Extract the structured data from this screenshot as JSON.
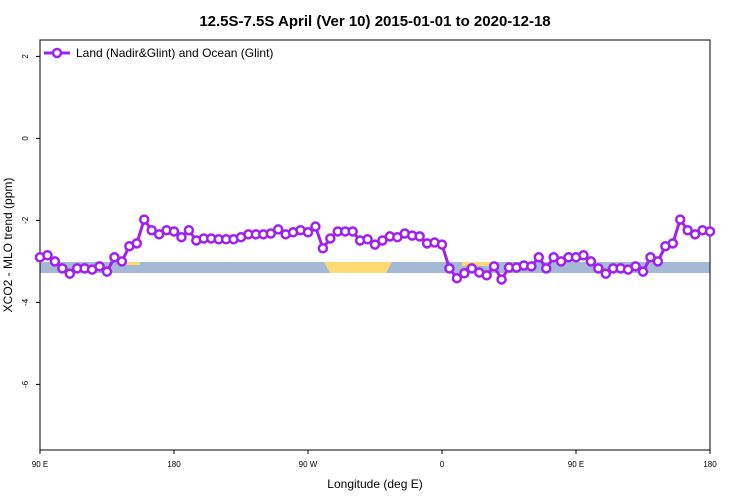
{
  "chart_data": {
    "type": "line",
    "title": "12.5S-7.5S April (Ver 10)   2015-01-01 to 2020-12-18",
    "xlabel": "Longitude (deg E)",
    "ylabel": "XCO2 - MLO trend (ppm)",
    "xlim": [
      90,
      540
    ],
    "ylim": [
      -7.6,
      2.4
    ],
    "xticks": [
      {
        "value": 90,
        "label": "90 E"
      },
      180,
      {
        "value": 270,
        "label": "90 W"
      },
      {
        "value": 360,
        "label": "0"
      },
      {
        "value": 450,
        "label": "90 E"
      },
      {
        "value": 540,
        "label": "180"
      }
    ],
    "yticks": [
      2,
      0,
      -2,
      -4,
      -6
    ],
    "grid": false,
    "legend": "upper left",
    "x": [
      90,
      95,
      100,
      105,
      110,
      115,
      120,
      125,
      130,
      135,
      140,
      145,
      150,
      155,
      160,
      165,
      170,
      175,
      180,
      185,
      190,
      195,
      200,
      205,
      210,
      215,
      220,
      225,
      230,
      235,
      240,
      245,
      250,
      255,
      260,
      265,
      270,
      275,
      280,
      285,
      290,
      295,
      300,
      305,
      310,
      315,
      320,
      325,
      330,
      335,
      340,
      345,
      350,
      355,
      360,
      365,
      370,
      375,
      380,
      385,
      390,
      395,
      400,
      405,
      410,
      415,
      420,
      425,
      430,
      435,
      440,
      445,
      450,
      455,
      460,
      465,
      470,
      475,
      480,
      485,
      490,
      495,
      500,
      505,
      510,
      515,
      520,
      525,
      530,
      535,
      540
    ],
    "series": [
      {
        "name": "Land (Nadir&Glint) and Ocean (Glint)",
        "color": "#a020f0",
        "values": [
          -2.9,
          -2.85,
          -3.0,
          -3.17,
          -3.3,
          -3.17,
          -3.17,
          -3.2,
          -3.12,
          -3.25,
          -2.9,
          -3.0,
          -2.63,
          -2.56,
          -1.98,
          -2.24,
          -2.34,
          -2.24,
          -2.27,
          -2.41,
          -2.24,
          -2.49,
          -2.44,
          -2.44,
          -2.46,
          -2.46,
          -2.46,
          -2.41,
          -2.34,
          -2.34,
          -2.34,
          -2.32,
          -2.22,
          -2.34,
          -2.29,
          -2.24,
          -2.29,
          -2.15,
          -2.68,
          -2.44,
          -2.27,
          -2.27,
          -2.27,
          -2.49,
          -2.46,
          -2.59,
          -2.49,
          -2.39,
          -2.41,
          -2.32,
          -2.37,
          -2.39,
          -2.56,
          -2.54,
          -2.59,
          -3.17,
          -3.41,
          -3.29,
          -3.17,
          -3.27,
          -3.34,
          -3.12,
          -3.44,
          -3.15,
          -3.15,
          -3.1,
          -3.12,
          -2.9,
          -3.17,
          -2.9,
          -3.0,
          -2.9,
          -2.9,
          -2.85,
          -3.0,
          -3.17,
          -3.3,
          -3.17,
          -3.17,
          -3.2,
          -3.12,
          -3.25,
          -2.9,
          -3.0,
          -2.63,
          -2.56,
          -1.98,
          -2.24,
          -2.34,
          -2.24,
          -2.27
        ]
      }
    ]
  }
}
